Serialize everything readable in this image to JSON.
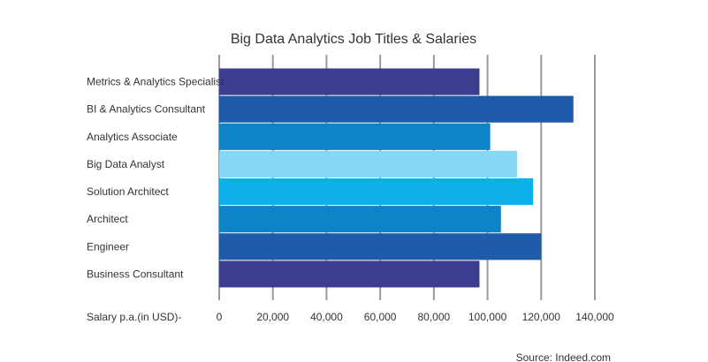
{
  "chart_data": {
    "type": "bar",
    "orientation": "horizontal",
    "title": "Big Data Analytics Job Titles & Salaries",
    "xlabel": "Salary p.a.(in USD)-",
    "ylabel": "",
    "xlim": [
      0,
      140000
    ],
    "xticks": [
      0,
      20000,
      40000,
      60000,
      80000,
      100000,
      120000,
      140000
    ],
    "xtick_labels": [
      "0",
      "20,000",
      "40,000",
      "60,000",
      "80,000",
      "100,000",
      "120,000",
      "140,000"
    ],
    "grid": true,
    "categories": [
      "Metrics & Analytics Specialist",
      "BI & Analytics Consultant",
      "Analytics Associate",
      "Big Data Analyst",
      "Solution Architect",
      "Architect",
      "Engineer",
      "Business Consultant"
    ],
    "values": [
      97000,
      132000,
      101000,
      111000,
      117000,
      105000,
      120000,
      97000
    ],
    "colors": [
      "#3d3d8f",
      "#1f5ba8",
      "#0f83c8",
      "#87d6f5",
      "#0db0ea",
      "#0f83c8",
      "#1f5ba8",
      "#3d3d8f"
    ],
    "source": "Source: Indeed.com"
  }
}
